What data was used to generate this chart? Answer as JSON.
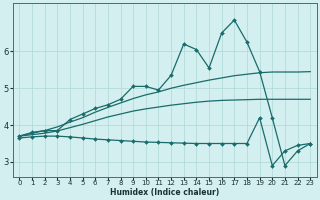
{
  "xlabel": "Humidex (Indice chaleur)",
  "bg_color": "#d4efef",
  "line_color": "#1a6b6b",
  "grid_color": "#aed8d8",
  "xlim": [
    -0.5,
    23.5
  ],
  "ylim": [
    2.6,
    7.3
  ],
  "xticks": [
    0,
    1,
    2,
    3,
    4,
    5,
    6,
    7,
    8,
    9,
    10,
    11,
    12,
    13,
    14,
    15,
    16,
    17,
    18,
    19,
    20,
    21,
    22,
    23
  ],
  "yticks": [
    3,
    4,
    5,
    6
  ],
  "series": [
    {
      "x": [
        0,
        1,
        2,
        3,
        4,
        5,
        6,
        7,
        8,
        9,
        10,
        11,
        12,
        13,
        14,
        15,
        16,
        17,
        18,
        19,
        20,
        21,
        22,
        23
      ],
      "y": [
        3.7,
        3.8,
        3.85,
        3.85,
        4.15,
        4.3,
        4.45,
        4.55,
        4.7,
        5.05,
        5.05,
        4.95,
        5.35,
        6.2,
        6.05,
        5.55,
        6.5,
        6.85,
        6.25,
        5.45,
        4.2,
        2.9,
        3.3,
        3.5
      ],
      "markers": true
    },
    {
      "x": [
        0,
        1,
        2,
        3,
        4,
        5,
        6,
        7,
        8,
        9,
        10,
        11,
        12,
        13,
        14,
        15,
        16,
        17,
        18,
        19,
        20,
        21,
        22,
        23
      ],
      "y": [
        3.7,
        3.78,
        3.85,
        3.95,
        4.08,
        4.2,
        4.35,
        4.48,
        4.6,
        4.72,
        4.82,
        4.9,
        5.0,
        5.08,
        5.15,
        5.22,
        5.28,
        5.34,
        5.38,
        5.42,
        5.44,
        5.44,
        5.44,
        5.45
      ],
      "markers": false
    },
    {
      "x": [
        0,
        1,
        2,
        3,
        4,
        5,
        6,
        7,
        8,
        9,
        10,
        11,
        12,
        13,
        14,
        15,
        16,
        17,
        18,
        19,
        20,
        21,
        22,
        23
      ],
      "y": [
        3.7,
        3.74,
        3.78,
        3.84,
        3.93,
        4.02,
        4.12,
        4.22,
        4.3,
        4.38,
        4.44,
        4.49,
        4.54,
        4.58,
        4.62,
        4.65,
        4.67,
        4.68,
        4.69,
        4.7,
        4.7,
        4.7,
        4.7,
        4.7
      ],
      "markers": false
    },
    {
      "x": [
        0,
        1,
        2,
        3,
        4,
        5,
        6,
        7,
        8,
        9,
        10,
        11,
        12,
        13,
        14,
        15,
        16,
        17,
        18,
        19,
        20,
        21,
        22,
        23
      ],
      "y": [
        3.65,
        3.68,
        3.7,
        3.7,
        3.68,
        3.65,
        3.62,
        3.6,
        3.58,
        3.56,
        3.54,
        3.53,
        3.52,
        3.51,
        3.5,
        3.5,
        3.5,
        3.5,
        3.5,
        4.2,
        2.9,
        3.3,
        3.45,
        3.5
      ],
      "markers": true
    }
  ]
}
